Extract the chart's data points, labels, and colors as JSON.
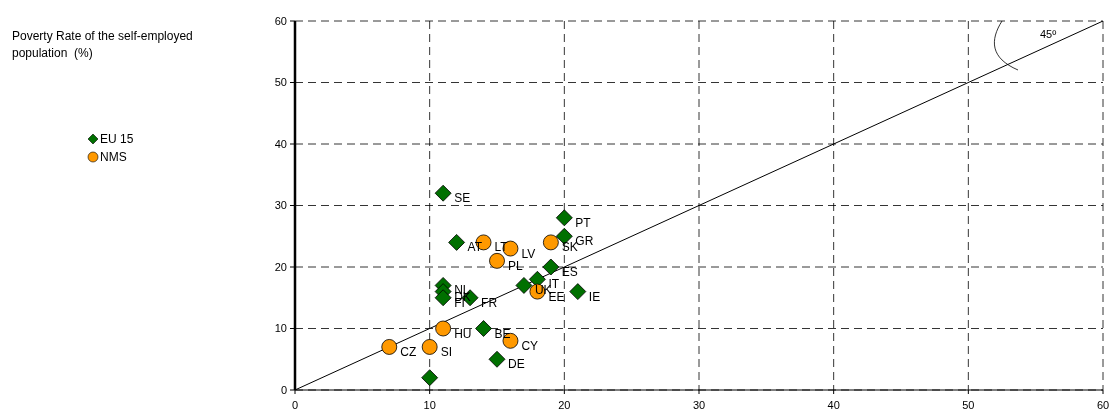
{
  "chart_data": {
    "type": "scatter",
    "xlim": [
      0,
      60
    ],
    "xticks": [
      0,
      10,
      20,
      30,
      40,
      50,
      60
    ],
    "ylim": [
      0,
      60
    ],
    "yticks": [
      0,
      10,
      20,
      30,
      40,
      50,
      60
    ],
    "grid": true,
    "legend": "left",
    "series": [
      {
        "name": "EU 15",
        "color": "#007000",
        "marker": "diamond",
        "x": [
          11,
          12,
          20,
          20,
          19,
          18,
          17,
          21,
          11,
          11,
          11,
          13,
          14,
          15,
          10
        ],
        "values": [
          32,
          24,
          28,
          25,
          20,
          18,
          17,
          16,
          17,
          16,
          15,
          15,
          10,
          5,
          2
        ]
      },
      {
        "name": "NMS",
        "color": "#ff9900",
        "marker": "circle",
        "x": [
          14,
          15,
          16,
          19,
          18,
          11,
          16,
          7,
          10
        ],
        "values": [
          24,
          21,
          23,
          24,
          16,
          10,
          8,
          7,
          7
        ]
      },
      {
        "type": "line",
        "color": "#000000",
        "x": [
          0,
          60
        ],
        "values": [
          0,
          60
        ]
      }
    ],
    "annotations": [
      {
        "text": "SE",
        "x": 11,
        "y": 32
      },
      {
        "text": "AT",
        "x": 12,
        "y": 24
      },
      {
        "text": "PT",
        "x": 20,
        "y": 28
      },
      {
        "text": "GR",
        "x": 20,
        "y": 25
      },
      {
        "text": "ES",
        "x": 19,
        "y": 20
      },
      {
        "text": "IT",
        "x": 18,
        "y": 18
      },
      {
        "text": "UK",
        "x": 17,
        "y": 17
      },
      {
        "text": "IE",
        "x": 21,
        "y": 16
      },
      {
        "text": "NL",
        "x": 11,
        "y": 17
      },
      {
        "text": "DK",
        "x": 11,
        "y": 16
      },
      {
        "text": "FI",
        "x": 11,
        "y": 15
      },
      {
        "text": "FR",
        "x": 13,
        "y": 15
      },
      {
        "text": "BE",
        "x": 14,
        "y": 10
      },
      {
        "text": "DE",
        "x": 15,
        "y": 5
      },
      {
        "text": "LT",
        "x": 14,
        "y": 24
      },
      {
        "text": "PL",
        "x": 15,
        "y": 21
      },
      {
        "text": "LV",
        "x": 16,
        "y": 23
      },
      {
        "text": "SK",
        "x": 19,
        "y": 24
      },
      {
        "text": "EE",
        "x": 18,
        "y": 16
      },
      {
        "text": "HU",
        "x": 11,
        "y": 10
      },
      {
        "text": "CY",
        "x": 16,
        "y": 8
      },
      {
        "text": "CZ",
        "x": 7,
        "y": 7
      },
      {
        "text": "SI",
        "x": 10,
        "y": 7
      },
      "Poverty Rate of the self-employed population  (%)",
      "45º"
    ]
  }
}
